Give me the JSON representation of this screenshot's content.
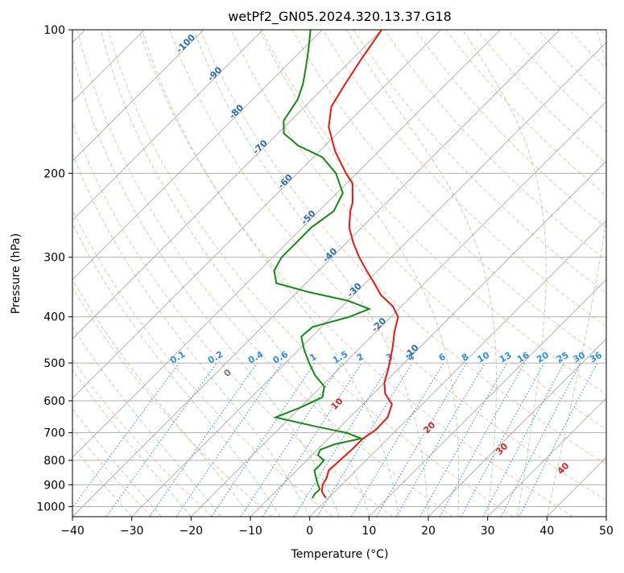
{
  "title": "wetPf2_GN05.2024.320.13.37.G18",
  "chart_data": {
    "type": "skew-t log-p",
    "title": "wetPf2_GN05.2024.320.13.37.G18",
    "xlabel": "Temperature (°C)",
    "ylabel": "Pressure (hPa)",
    "xlim": [
      -40,
      50
    ],
    "ylim": [
      1050,
      100
    ],
    "y_scale": "log",
    "x_ticks": [
      -40,
      -30,
      -20,
      -10,
      0,
      10,
      20,
      30,
      40,
      50
    ],
    "y_ticks": [
      100,
      200,
      300,
      400,
      500,
      600,
      700,
      800,
      900,
      1000
    ],
    "grid": true,
    "colors": {
      "temperature": "#e8170f",
      "dewpoint": "#138a13",
      "dry_adiabats": "#f6a58c",
      "moist_adiabats": "#9fcf9f",
      "isotherms": "#888888",
      "mixing_ratio": "#2f8ee6",
      "isotherm_labels": "#2b6cb0",
      "theta_labels": "#d62728",
      "zero_label": "#777777"
    },
    "series": [
      {
        "name": "temperature",
        "points": [
          [
            960,
            -0.4
          ],
          [
            930,
            -2.2
          ],
          [
            900,
            -3.2
          ],
          [
            870,
            -3.7
          ],
          [
            840,
            -4.6
          ],
          [
            800,
            -4.4
          ],
          [
            760,
            -4.2
          ],
          [
            720,
            -4.2
          ],
          [
            690,
            -3.5
          ],
          [
            650,
            -3.6
          ],
          [
            610,
            -5.1
          ],
          [
            580,
            -8.0
          ],
          [
            550,
            -10.0
          ],
          [
            520,
            -11.4
          ],
          [
            490,
            -13.0
          ],
          [
            460,
            -14.8
          ],
          [
            430,
            -16.9
          ],
          [
            400,
            -18.8
          ],
          [
            380,
            -21.5
          ],
          [
            360,
            -25.4
          ],
          [
            340,
            -28.5
          ],
          [
            320,
            -31.9
          ],
          [
            300,
            -35.4
          ],
          [
            280,
            -38.8
          ],
          [
            260,
            -42.1
          ],
          [
            240,
            -44.7
          ],
          [
            230,
            -45.8
          ],
          [
            210,
            -49.0
          ],
          [
            200,
            -51.8
          ],
          [
            180,
            -57.3
          ],
          [
            160,
            -62.5
          ],
          [
            145,
            -65.5
          ],
          [
            130,
            -67.0
          ],
          [
            115,
            -68.5
          ],
          [
            100,
            -70.0
          ]
        ]
      },
      {
        "name": "dewpoint",
        "points": [
          [
            960,
            -2.7
          ],
          [
            940,
            -3.0
          ],
          [
            920,
            -2.9
          ],
          [
            900,
            -4.0
          ],
          [
            880,
            -5.0
          ],
          [
            860,
            -6.0
          ],
          [
            840,
            -7.0
          ],
          [
            820,
            -7.0
          ],
          [
            800,
            -7.1
          ],
          [
            780,
            -9.0
          ],
          [
            760,
            -9.5
          ],
          [
            740,
            -8.0
          ],
          [
            720,
            -4.5
          ],
          [
            700,
            -8.0
          ],
          [
            680,
            -14.0
          ],
          [
            650,
            -22.5
          ],
          [
            620,
            -20.0
          ],
          [
            590,
            -18.0
          ],
          [
            560,
            -19.5
          ],
          [
            530,
            -23.0
          ],
          [
            500,
            -26.0
          ],
          [
            470,
            -29.0
          ],
          [
            440,
            -31.8
          ],
          [
            420,
            -31.5
          ],
          [
            400,
            -27.0
          ],
          [
            385,
            -25.0
          ],
          [
            370,
            -30.0
          ],
          [
            355,
            -38.0
          ],
          [
            340,
            -45.0
          ],
          [
            320,
            -47.5
          ],
          [
            300,
            -48.5
          ],
          [
            280,
            -48.5
          ],
          [
            260,
            -48.5
          ],
          [
            240,
            -47.5
          ],
          [
            220,
            -49.0
          ],
          [
            200,
            -53.5
          ],
          [
            185,
            -58.5
          ],
          [
            175,
            -64.5
          ],
          [
            165,
            -69.0
          ],
          [
            155,
            -71.2
          ],
          [
            140,
            -72.4
          ],
          [
            130,
            -74.1
          ],
          [
            120,
            -76.4
          ],
          [
            110,
            -79.0
          ],
          [
            100,
            -82.0
          ]
        ]
      }
    ],
    "isotherm_labels": [
      "-100",
      "-90",
      "-80",
      "-70",
      "-60",
      "-50",
      "-40",
      "-30",
      "-20",
      "-10"
    ],
    "mixing_ratio_labels": [
      "0.1",
      "0.2",
      "0.4",
      "0.6",
      "1",
      "1.5",
      "2",
      "3",
      "4",
      "6",
      "8",
      "10",
      "13",
      "16",
      "20",
      "25",
      "30",
      "36"
    ],
    "moist_adiabat_labels": [
      "0",
      "10",
      "20",
      "30",
      "40"
    ]
  }
}
